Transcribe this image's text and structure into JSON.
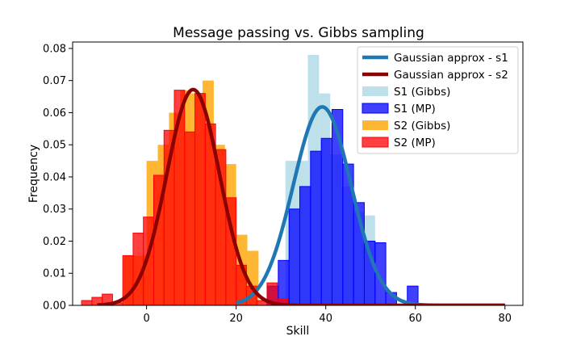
{
  "chart_data": {
    "type": "bar",
    "title": "Message passing vs. Gibbs sampling",
    "xlabel": "Skill",
    "ylabel": "Frequency",
    "xlim": [
      -16.5,
      84
    ],
    "ylim": [
      0,
      0.082
    ],
    "xticks": [
      0,
      20,
      40,
      60,
      80
    ],
    "yticks": [
      0.0,
      0.01,
      0.02,
      0.03,
      0.04,
      0.05,
      0.06,
      0.07,
      0.08
    ],
    "xtick_labels": [
      "0",
      "20",
      "40",
      "60",
      "80"
    ],
    "ytick_labels": [
      "0.00",
      "0.01",
      "0.02",
      "0.03",
      "0.04",
      "0.05",
      "0.06",
      "0.07",
      "0.08"
    ],
    "legend_position": "top-right",
    "grid": false,
    "histograms": [
      {
        "name": "S1 (Gibbs)",
        "color": "#add8e6",
        "alpha": 0.8,
        "outline": false,
        "edges": [
          31,
          33.5,
          36,
          38.5,
          41,
          43.5,
          46,
          48.5,
          51
        ],
        "values": [
          0.045,
          0.045,
          0.078,
          0.066,
          0.047,
          0.037,
          0.029,
          0.028
        ]
      },
      {
        "name": "S1 (MP)",
        "color": "#0000ff",
        "alpha": 0.75,
        "outline": true,
        "edges": [
          27,
          29.4,
          31.8,
          34.2,
          36.6,
          39.0,
          41.4,
          43.8,
          46.2,
          48.6,
          51.0,
          53.4,
          55.8,
          58.2,
          60.6
        ],
        "values": [
          0.006,
          0.014,
          0.03,
          0.037,
          0.048,
          0.052,
          0.061,
          0.044,
          0.032,
          0.02,
          0.0195,
          0.004,
          0.0,
          0.006
        ]
      },
      {
        "name": "S2 (Gibbs)",
        "color": "#ffa500",
        "alpha": 0.8,
        "outline": false,
        "edges": [
          -5,
          -2.5,
          0,
          2.5,
          5,
          7.5,
          10,
          12.5,
          15,
          17.5,
          20,
          22.5,
          25
        ],
        "values": [
          0.0155,
          0.0155,
          0.045,
          0.05,
          0.06,
          0.067,
          0.066,
          0.07,
          0.05,
          0.044,
          0.022,
          0.017
        ]
      },
      {
        "name": "S2 (MP)",
        "color": "#ff0000",
        "alpha": 0.75,
        "outline": true,
        "edges": [
          -14.5,
          -12.2,
          -9.9,
          -7.6,
          -5.3,
          -3.0,
          -0.7,
          1.6,
          3.9,
          6.2,
          8.5,
          10.8,
          13.1,
          15.4,
          17.7,
          20.0,
          22.3,
          24.6,
          26.9,
          29.2,
          31.5
        ],
        "values": [
          0.0015,
          0.0025,
          0.0035,
          0.0008,
          0.0155,
          0.0225,
          0.0275,
          0.0405,
          0.0545,
          0.067,
          0.054,
          0.066,
          0.0565,
          0.0485,
          0.0335,
          0.0125,
          0.006,
          0.0015,
          0.007,
          0.002
        ]
      }
    ],
    "curves": [
      {
        "name": "Gaussian approx - s1",
        "color": "#1f77b4",
        "mean": 39.2,
        "std": 6.45,
        "peak": 0.0618,
        "x_start": 20,
        "x_end": 80
      },
      {
        "name": "Gaussian approx - s2",
        "color": "#8b0000",
        "mean": 10.4,
        "std": 5.9,
        "peak": 0.0672,
        "x_start": -11,
        "x_end": 80
      }
    ],
    "legend": [
      "Gaussian approx - s1",
      "Gaussian approx - s2",
      "S1 (Gibbs)",
      "S1 (MP)",
      "S2 (Gibbs)",
      "S2 (MP)"
    ]
  }
}
